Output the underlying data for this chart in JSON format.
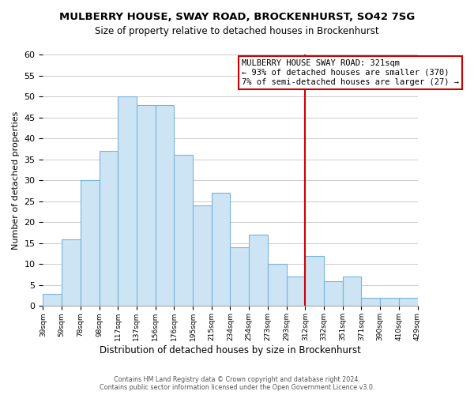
{
  "title": "MULBERRY HOUSE, SWAY ROAD, BROCKENHURST, SO42 7SG",
  "subtitle": "Size of property relative to detached houses in Brockenhurst",
  "xlabel": "Distribution of detached houses by size in Brockenhurst",
  "ylabel": "Number of detached properties",
  "bin_labels": [
    "39sqm",
    "59sqm",
    "78sqm",
    "98sqm",
    "117sqm",
    "137sqm",
    "156sqm",
    "176sqm",
    "195sqm",
    "215sqm",
    "234sqm",
    "254sqm",
    "273sqm",
    "293sqm",
    "312sqm",
    "332sqm",
    "351sqm",
    "371sqm",
    "390sqm",
    "410sqm",
    "429sqm"
  ],
  "bar_heights": [
    3,
    16,
    30,
    37,
    50,
    48,
    48,
    36,
    24,
    27,
    14,
    17,
    10,
    7,
    12,
    6,
    7,
    2,
    2,
    2
  ],
  "bar_color": "#cce4f4",
  "bar_edge_color": "#7ab4d8",
  "ylim": [
    0,
    60
  ],
  "yticks": [
    0,
    5,
    10,
    15,
    20,
    25,
    30,
    35,
    40,
    45,
    50,
    55,
    60
  ],
  "vline_x": 14,
  "vline_color": "#cc0000",
  "annotation_title": "MULBERRY HOUSE SWAY ROAD: 321sqm",
  "annotation_line1": "← 93% of detached houses are smaller (370)",
  "annotation_line2": "7% of semi-detached houses are larger (27) →",
  "footer_line1": "Contains HM Land Registry data © Crown copyright and database right 2024.",
  "footer_line2": "Contains public sector information licensed under the Open Government Licence v3.0.",
  "background_color": "#ffffff",
  "grid_color": "#cccccc"
}
